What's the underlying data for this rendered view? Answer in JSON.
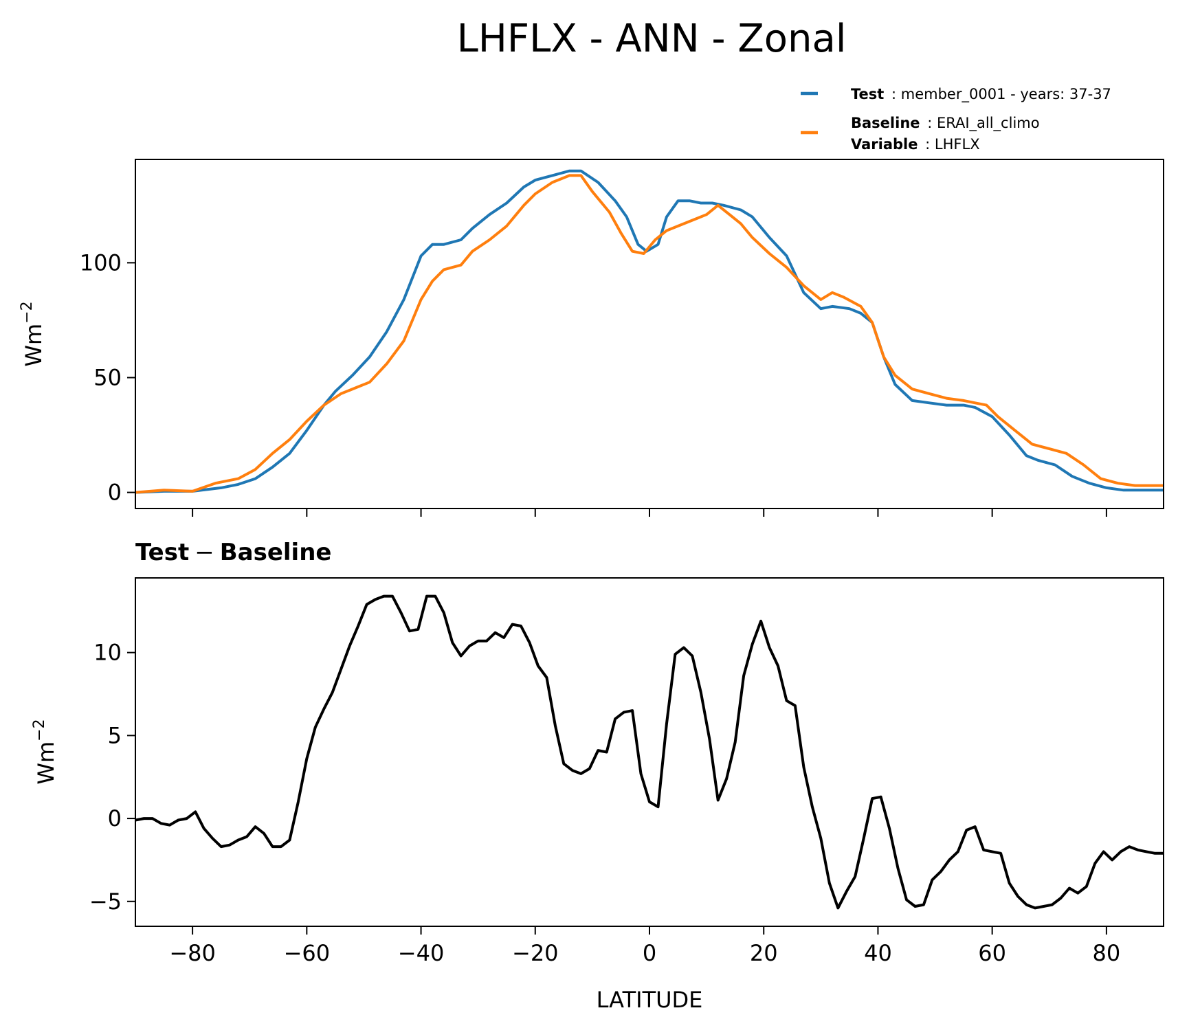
{
  "chart_data": {
    "title": "LHFLX - ANN - Zonal",
    "legend": {
      "placement": "top-right",
      "entries": [
        {
          "series": "Test",
          "label": "Test",
          "text": "member_0001 - years: 37-37"
        },
        {
          "series": "Baseline",
          "label": "Baseline",
          "text": "ERAI_all_climo",
          "label2": "Variable",
          "text2": "LHFLX"
        }
      ]
    },
    "colors": {
      "test": "#1f77b4",
      "baseline": "#ff7f0e",
      "diff": "#000000"
    },
    "charts": [
      {
        "type": "line",
        "xlabel": "",
        "ylabel": "Wm",
        "ylabel_sup": "−2",
        "xlim": [
          -90,
          90
        ],
        "ylim": [
          -7,
          145
        ],
        "xticks": [
          -80,
          -60,
          -40,
          -20,
          0,
          20,
          40,
          60,
          80
        ],
        "yticks": [
          0,
          50,
          100
        ],
        "ytick_labels": [
          "0",
          "50",
          "100"
        ],
        "series": [
          {
            "name": "Test",
            "color": "#1f77b4",
            "x": [
              -90,
              -85,
              -80,
              -75,
              -72,
              -69,
              -66,
              -63,
              -60,
              -57,
              -55,
              -52,
              -49,
              -46,
              -43,
              -40,
              -38,
              -36,
              -33,
              -31,
              -28,
              -25,
              -22,
              -20,
              -17,
              -14,
              -12,
              -9,
              -6,
              -4,
              -2,
              -0.5,
              1.5,
              3,
              5,
              7,
              9,
              11,
              13,
              16,
              18,
              21,
              24,
              27,
              30,
              32,
              35,
              37,
              39,
              41,
              43,
              46,
              49,
              52,
              55,
              57,
              60,
              63,
              66,
              68,
              71,
              74,
              77,
              80,
              83,
              86,
              90
            ],
            "y": [
              0,
              0.5,
              0.5,
              2,
              3.5,
              6,
              11,
              17,
              27,
              38,
              44,
              51,
              59,
              70,
              84,
              103,
              108,
              108,
              110,
              115,
              121,
              126,
              133,
              136,
              138,
              140,
              140,
              135,
              127,
              120,
              108,
              105,
              108,
              120,
              127,
              127,
              126,
              126,
              125,
              123,
              120,
              111,
              103,
              87,
              80,
              81,
              80,
              78,
              74,
              59,
              47,
              40,
              39,
              38,
              38,
              37,
              33,
              25,
              16,
              14,
              12,
              7,
              4,
              2,
              1,
              1,
              1
            ]
          },
          {
            "name": "Baseline",
            "color": "#ff7f0e",
            "x": [
              -90,
              -85,
              -80,
              -76,
              -72,
              -69,
              -66,
              -63,
              -60,
              -57,
              -54,
              -51,
              -49,
              -46,
              -43,
              -40,
              -38,
              -36,
              -33,
              -31,
              -28,
              -25,
              -22,
              -20,
              -17,
              -14,
              -12,
              -10,
              -7,
              -5,
              -3,
              -1,
              1,
              3,
              5,
              8,
              10,
              12,
              14,
              16,
              18,
              21,
              24,
              27,
              30,
              32,
              34,
              37,
              39,
              41,
              43,
              46,
              49,
              52,
              55,
              57,
              59,
              61,
              64,
              67,
              70,
              73,
              76,
              79,
              82,
              85,
              90
            ],
            "y": [
              0,
              1,
              0.5,
              4,
              6,
              10,
              17,
              23,
              31,
              38,
              43,
              46,
              48,
              56,
              66,
              84,
              92,
              97,
              99,
              105,
              110,
              116,
              125,
              130,
              135,
              138,
              138,
              131,
              122,
              113,
              105,
              104,
              110,
              114,
              116,
              119,
              121,
              125,
              121,
              117,
              111,
              104,
              98,
              90,
              84,
              87,
              85,
              81,
              74,
              59,
              51,
              45,
              43,
              41,
              40,
              39,
              38,
              33,
              27,
              21,
              19,
              17,
              12,
              6,
              4,
              3,
              3
            ]
          }
        ]
      },
      {
        "type": "line",
        "subtitle_a": "Test",
        "subtitle_op": "−",
        "subtitle_b": "Baseline",
        "xlabel": "LATITUDE",
        "ylabel": "Wm",
        "ylabel_sup": "−2",
        "xlim": [
          -90,
          90
        ],
        "ylim": [
          -6.5,
          14.5
        ],
        "xticks": [
          -80,
          -60,
          -40,
          -20,
          0,
          20,
          40,
          60,
          80
        ],
        "xtick_labels": [
          "−80",
          "−60",
          "−40",
          "−20",
          "0",
          "20",
          "40",
          "60",
          "80"
        ],
        "yticks": [
          -5,
          0,
          5,
          10
        ],
        "ytick_labels": [
          "−5",
          "0",
          "5",
          "10"
        ],
        "series": [
          {
            "name": "Test − Baseline",
            "color": "#000000",
            "x": [
              -90,
              -88.5,
              -87,
              -85.5,
              -84,
              -82.5,
              -81,
              -79.5,
              -78,
              -76.5,
              -75,
              -73.5,
              -72,
              -70.5,
              -69,
              -67.5,
              -66,
              -64.5,
              -63,
              -61.5,
              -60,
              -58.5,
              -57,
              -55.5,
              -54,
              -52.5,
              -51,
              -49.5,
              -48,
              -46.5,
              -45,
              -43.5,
              -42,
              -40.5,
              -39,
              -37.5,
              -36,
              -34.5,
              -33,
              -31.5,
              -30,
              -28.5,
              -27,
              -25.5,
              -24,
              -22.5,
              -21,
              -19.5,
              -18,
              -16.5,
              -15,
              -13.5,
              -12,
              -10.5,
              -9,
              -7.5,
              -6,
              -4.5,
              -3,
              -1.5,
              0,
              1.5,
              3,
              4.5,
              6,
              7.5,
              9,
              10.5,
              12,
              13.5,
              15,
              16.5,
              18,
              19.5,
              21,
              22.5,
              24,
              25.5,
              27,
              28.5,
              30,
              31.5,
              33,
              34.5,
              36,
              37.5,
              39,
              40.5,
              42,
              43.5,
              45,
              46.5,
              48,
              49.5,
              51,
              52.5,
              54,
              55.5,
              57,
              58.5,
              60,
              61.5,
              63,
              64.5,
              66,
              67.5,
              69,
              70.5,
              72,
              73.5,
              75,
              76.5,
              78,
              79.5,
              81,
              82.5,
              84,
              85.5,
              87,
              88.5,
              90
            ],
            "y": [
              -0.1,
              0,
              0,
              -0.3,
              -0.4,
              -0.1,
              0,
              0.4,
              -0.6,
              -1.2,
              -1.7,
              -1.6,
              -1.3,
              -1.1,
              -0.5,
              -0.9,
              -1.7,
              -1.7,
              -1.3,
              1,
              3.6,
              5.5,
              6.6,
              7.6,
              9,
              10.4,
              11.6,
              12.9,
              13.2,
              13.4,
              13.4,
              12.4,
              11.3,
              11.4,
              13.4,
              13.4,
              12.4,
              10.6,
              9.8,
              10.4,
              10.7,
              10.7,
              11.2,
              10.9,
              11.7,
              11.6,
              10.6,
              9.2,
              8.5,
              5.6,
              3.3,
              2.9,
              2.7,
              3,
              4.1,
              4,
              6,
              6.4,
              6.5,
              2.7,
              1,
              0.7,
              5.7,
              9.9,
              10.3,
              9.8,
              7.6,
              4.8,
              1.1,
              2.4,
              4.6,
              8.6,
              10.5,
              11.9,
              10.3,
              9.2,
              7.1,
              6.8,
              3.1,
              0.7,
              -1.2,
              -3.9,
              -5.4,
              -4.4,
              -3.5,
              -1.2,
              1.2,
              1.3,
              -0.6,
              -3,
              -4.9,
              -5.3,
              -5.2,
              -3.7,
              -3.2,
              -2.5,
              -2,
              -0.7,
              -0.5,
              -1.9,
              -2,
              -2.1,
              -3.9,
              -4.7,
              -5.2,
              -5.4,
              -5.3,
              -5.2,
              -4.8,
              -4.2,
              -4.5,
              -4.1,
              -2.7,
              -2,
              -2.5,
              -2,
              -1.7,
              -1.9,
              -2,
              -2.1,
              -2.1
            ]
          }
        ]
      }
    ]
  }
}
